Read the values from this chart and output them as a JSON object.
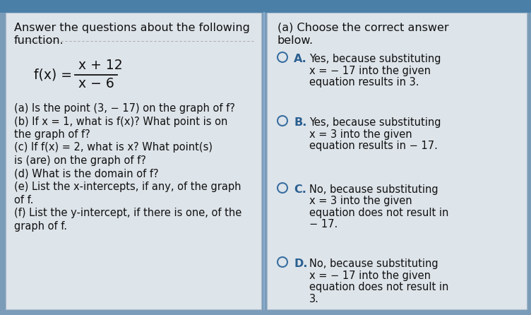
{
  "bg_color": "#7a9cb8",
  "left_panel_color": "#dde4ea",
  "right_panel_color": "#dde4ea",
  "header_color": "#4a7fa8",
  "divider_color": "#8aabcc",
  "text_color": "#111111",
  "circle_color": "#3a6fa0",
  "label_color": "#2a5f90",
  "left_title_line1": "Answer the questions about the following",
  "left_title_line2": "function.",
  "func_prefix": "f(x) =",
  "func_numerator": "x + 12",
  "func_denominator": "x − 6",
  "questions": [
    "(a) Is the point (3, − 17) on the graph of f?",
    "(b) If x = 1, what is f(x)? What point is on",
    "the graph of f?",
    "(c) If f(x) = 2, what is x? What point(s)",
    "is (are) on the graph of f?",
    "(d) What is the domain of f?",
    "(e) List the x-intercepts, if any, of the graph",
    "of f.",
    "(f) List the y-intercept, if there is one, of the",
    "graph of f."
  ],
  "right_title_line1": "(a) Choose the correct answer",
  "right_title_line2": "below.",
  "options": [
    {
      "label": "A.",
      "lines": [
        "Yes, because substituting",
        "x = − 17 into the given",
        "equation results in 3."
      ]
    },
    {
      "label": "B.",
      "lines": [
        "Yes, because substituting",
        "x = 3 into the given",
        "equation results in − 17."
      ]
    },
    {
      "label": "C.",
      "lines": [
        "No, because substituting",
        "x = 3 into the given",
        "equation does not result in",
        "− 17."
      ]
    },
    {
      "label": "D.",
      "lines": [
        "No, because substituting",
        "x = − 17 into the given",
        "equation does not result in",
        "3."
      ]
    }
  ]
}
